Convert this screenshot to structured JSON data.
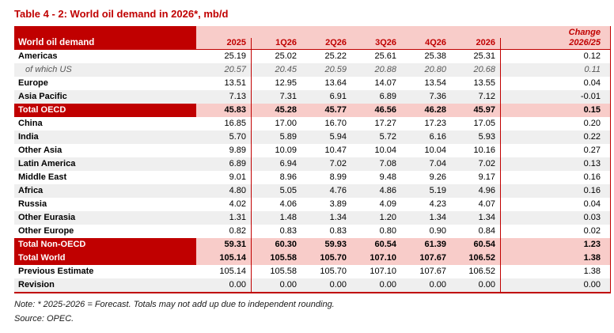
{
  "title": "Table 4 - 2: World oil demand in 2026*, mb/d",
  "note": "Note: * 2025-2026 = Forecast. Totals may not add up due to independent rounding.",
  "source": "Source: OPEC.",
  "colors": {
    "accent_red": "#C00000",
    "total_pink": "#F8CCC9",
    "stripe_gray": "#EFEFEF",
    "subitem_gray": "#595959"
  },
  "table": {
    "header_label": "World oil demand",
    "columns": [
      "2025",
      "1Q26",
      "2Q26",
      "3Q26",
      "4Q26",
      "2026"
    ],
    "change_header": {
      "line1": "Change",
      "line2": "2026/25"
    },
    "rows": [
      {
        "label": "Americas",
        "type": "normal",
        "values": [
          "25.19",
          "25.02",
          "25.22",
          "25.61",
          "25.38",
          "25.31",
          "0.12"
        ]
      },
      {
        "label": "of which US",
        "type": "sub",
        "values": [
          "20.57",
          "20.45",
          "20.59",
          "20.88",
          "20.80",
          "20.68",
          "0.11"
        ]
      },
      {
        "label": "Europe",
        "type": "normal",
        "values": [
          "13.51",
          "12.95",
          "13.64",
          "14.07",
          "13.54",
          "13.55",
          "0.04"
        ]
      },
      {
        "label": "Asia Pacific",
        "type": "normal",
        "values": [
          "7.13",
          "7.31",
          "6.91",
          "6.89",
          "7.36",
          "7.12",
          "-0.01"
        ]
      },
      {
        "label": "Total OECD",
        "type": "total",
        "values": [
          "45.83",
          "45.28",
          "45.77",
          "46.56",
          "46.28",
          "45.97",
          "0.15"
        ]
      },
      {
        "label": "China",
        "type": "normal",
        "values": [
          "16.85",
          "17.00",
          "16.70",
          "17.27",
          "17.23",
          "17.05",
          "0.20"
        ]
      },
      {
        "label": "India",
        "type": "normal",
        "values": [
          "5.70",
          "5.89",
          "5.94",
          "5.72",
          "6.16",
          "5.93",
          "0.22"
        ]
      },
      {
        "label": "Other Asia",
        "type": "normal",
        "values": [
          "9.89",
          "10.09",
          "10.47",
          "10.04",
          "10.04",
          "10.16",
          "0.27"
        ]
      },
      {
        "label": "Latin America",
        "type": "normal",
        "values": [
          "6.89",
          "6.94",
          "7.02",
          "7.08",
          "7.04",
          "7.02",
          "0.13"
        ]
      },
      {
        "label": "Middle East",
        "type": "normal",
        "values": [
          "9.01",
          "8.96",
          "8.99",
          "9.48",
          "9.26",
          "9.17",
          "0.16"
        ]
      },
      {
        "label": "Africa",
        "type": "normal",
        "values": [
          "4.80",
          "5.05",
          "4.76",
          "4.86",
          "5.19",
          "4.96",
          "0.16"
        ]
      },
      {
        "label": "Russia",
        "type": "normal",
        "values": [
          "4.02",
          "4.06",
          "3.89",
          "4.09",
          "4.23",
          "4.07",
          "0.04"
        ]
      },
      {
        "label": "Other Eurasia",
        "type": "normal",
        "values": [
          "1.31",
          "1.48",
          "1.34",
          "1.20",
          "1.34",
          "1.34",
          "0.03"
        ]
      },
      {
        "label": "Other Europe",
        "type": "normal",
        "values": [
          "0.82",
          "0.83",
          "0.83",
          "0.80",
          "0.90",
          "0.84",
          "0.02"
        ]
      },
      {
        "label": "Total Non-OECD",
        "type": "total",
        "values": [
          "59.31",
          "60.30",
          "59.93",
          "60.54",
          "61.39",
          "60.54",
          "1.23"
        ]
      },
      {
        "label": "Total World",
        "type": "total",
        "values": [
          "105.14",
          "105.58",
          "105.70",
          "107.10",
          "107.67",
          "106.52",
          "1.38"
        ]
      },
      {
        "label": "Previous Estimate",
        "type": "normal",
        "values": [
          "105.14",
          "105.58",
          "105.70",
          "107.10",
          "107.67",
          "106.52",
          "1.38"
        ]
      },
      {
        "label": "Revision",
        "type": "normal",
        "values": [
          "0.00",
          "0.00",
          "0.00",
          "0.00",
          "0.00",
          "0.00",
          "0.00"
        ]
      }
    ]
  }
}
